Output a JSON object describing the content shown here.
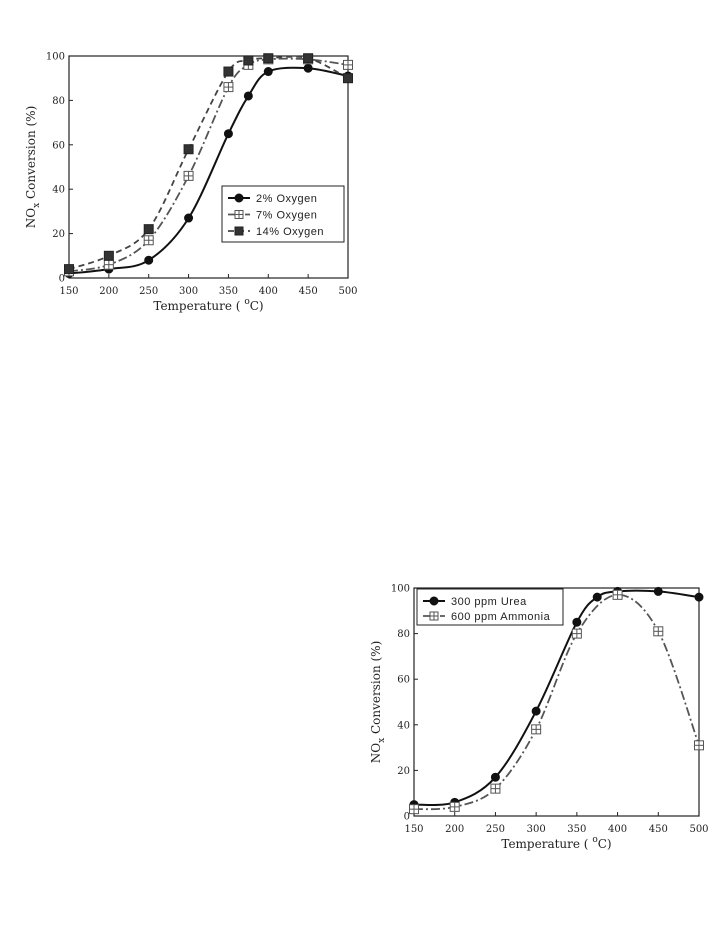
{
  "chart_data": [
    {
      "type": "line",
      "xlabel_prefix": "Temperature (",
      "xlabel_sup": "o",
      "xlabel_suffix": "C)",
      "ylabel_prefix": "NO",
      "ylabel_sub": "x",
      "ylabel_suffix": " Conversion (%)",
      "xlim": [
        150,
        500
      ],
      "ylim": [
        0,
        100
      ],
      "xticks": [
        150,
        200,
        250,
        300,
        350,
        400,
        450,
        500
      ],
      "yticks": [
        0,
        20,
        40,
        60,
        80,
        100
      ],
      "legend_position": "lower-right",
      "series": [
        {
          "name": "2% Oxygen",
          "marker": "filled-circle",
          "line": "solid",
          "x": [
            150,
            200,
            250,
            300,
            350,
            375,
            400,
            450,
            500
          ],
          "y": [
            2,
            4,
            8,
            27,
            65,
            82,
            93,
            94.5,
            91
          ]
        },
        {
          "name": "7% Oxygen",
          "marker": "open-square-cross",
          "line": "dash-dot",
          "x": [
            150,
            200,
            250,
            300,
            350,
            375,
            400,
            450,
            500
          ],
          "y": [
            3,
            6,
            17,
            46,
            86,
            96,
            98.5,
            98.5,
            96
          ]
        },
        {
          "name": "14% Oxygen",
          "marker": "filled-square",
          "line": "dashed",
          "x": [
            150,
            200,
            250,
            300,
            350,
            375,
            400,
            450,
            500
          ],
          "y": [
            4,
            10,
            22,
            58,
            93,
            98,
            99,
            99,
            90
          ]
        }
      ]
    },
    {
      "type": "line",
      "xlabel_prefix": "Temperature (",
      "xlabel_sup": "o",
      "xlabel_suffix": "C)",
      "ylabel_prefix": "NO",
      "ylabel_sub": "x",
      "ylabel_suffix": " Conversion (%)",
      "xlim": [
        150,
        500
      ],
      "ylim": [
        0,
        100
      ],
      "xticks": [
        150,
        200,
        250,
        300,
        350,
        400,
        450,
        500
      ],
      "yticks": [
        0,
        20,
        40,
        60,
        80,
        100
      ],
      "legend_position": "top-left",
      "series": [
        {
          "name": "300 ppm Urea",
          "marker": "filled-circle",
          "line": "solid",
          "x": [
            150,
            200,
            250,
            300,
            350,
            375,
            400,
            450,
            500
          ],
          "y": [
            5,
            6,
            17,
            46,
            85,
            96,
            98.5,
            98.5,
            96
          ]
        },
        {
          "name": "600 ppm Ammonia",
          "marker": "open-square-cross",
          "line": "dash-dot",
          "x": [
            150,
            200,
            250,
            300,
            350,
            400,
            450,
            500
          ],
          "y": [
            3,
            4,
            12,
            38,
            80,
            97,
            81,
            31
          ]
        }
      ]
    }
  ]
}
